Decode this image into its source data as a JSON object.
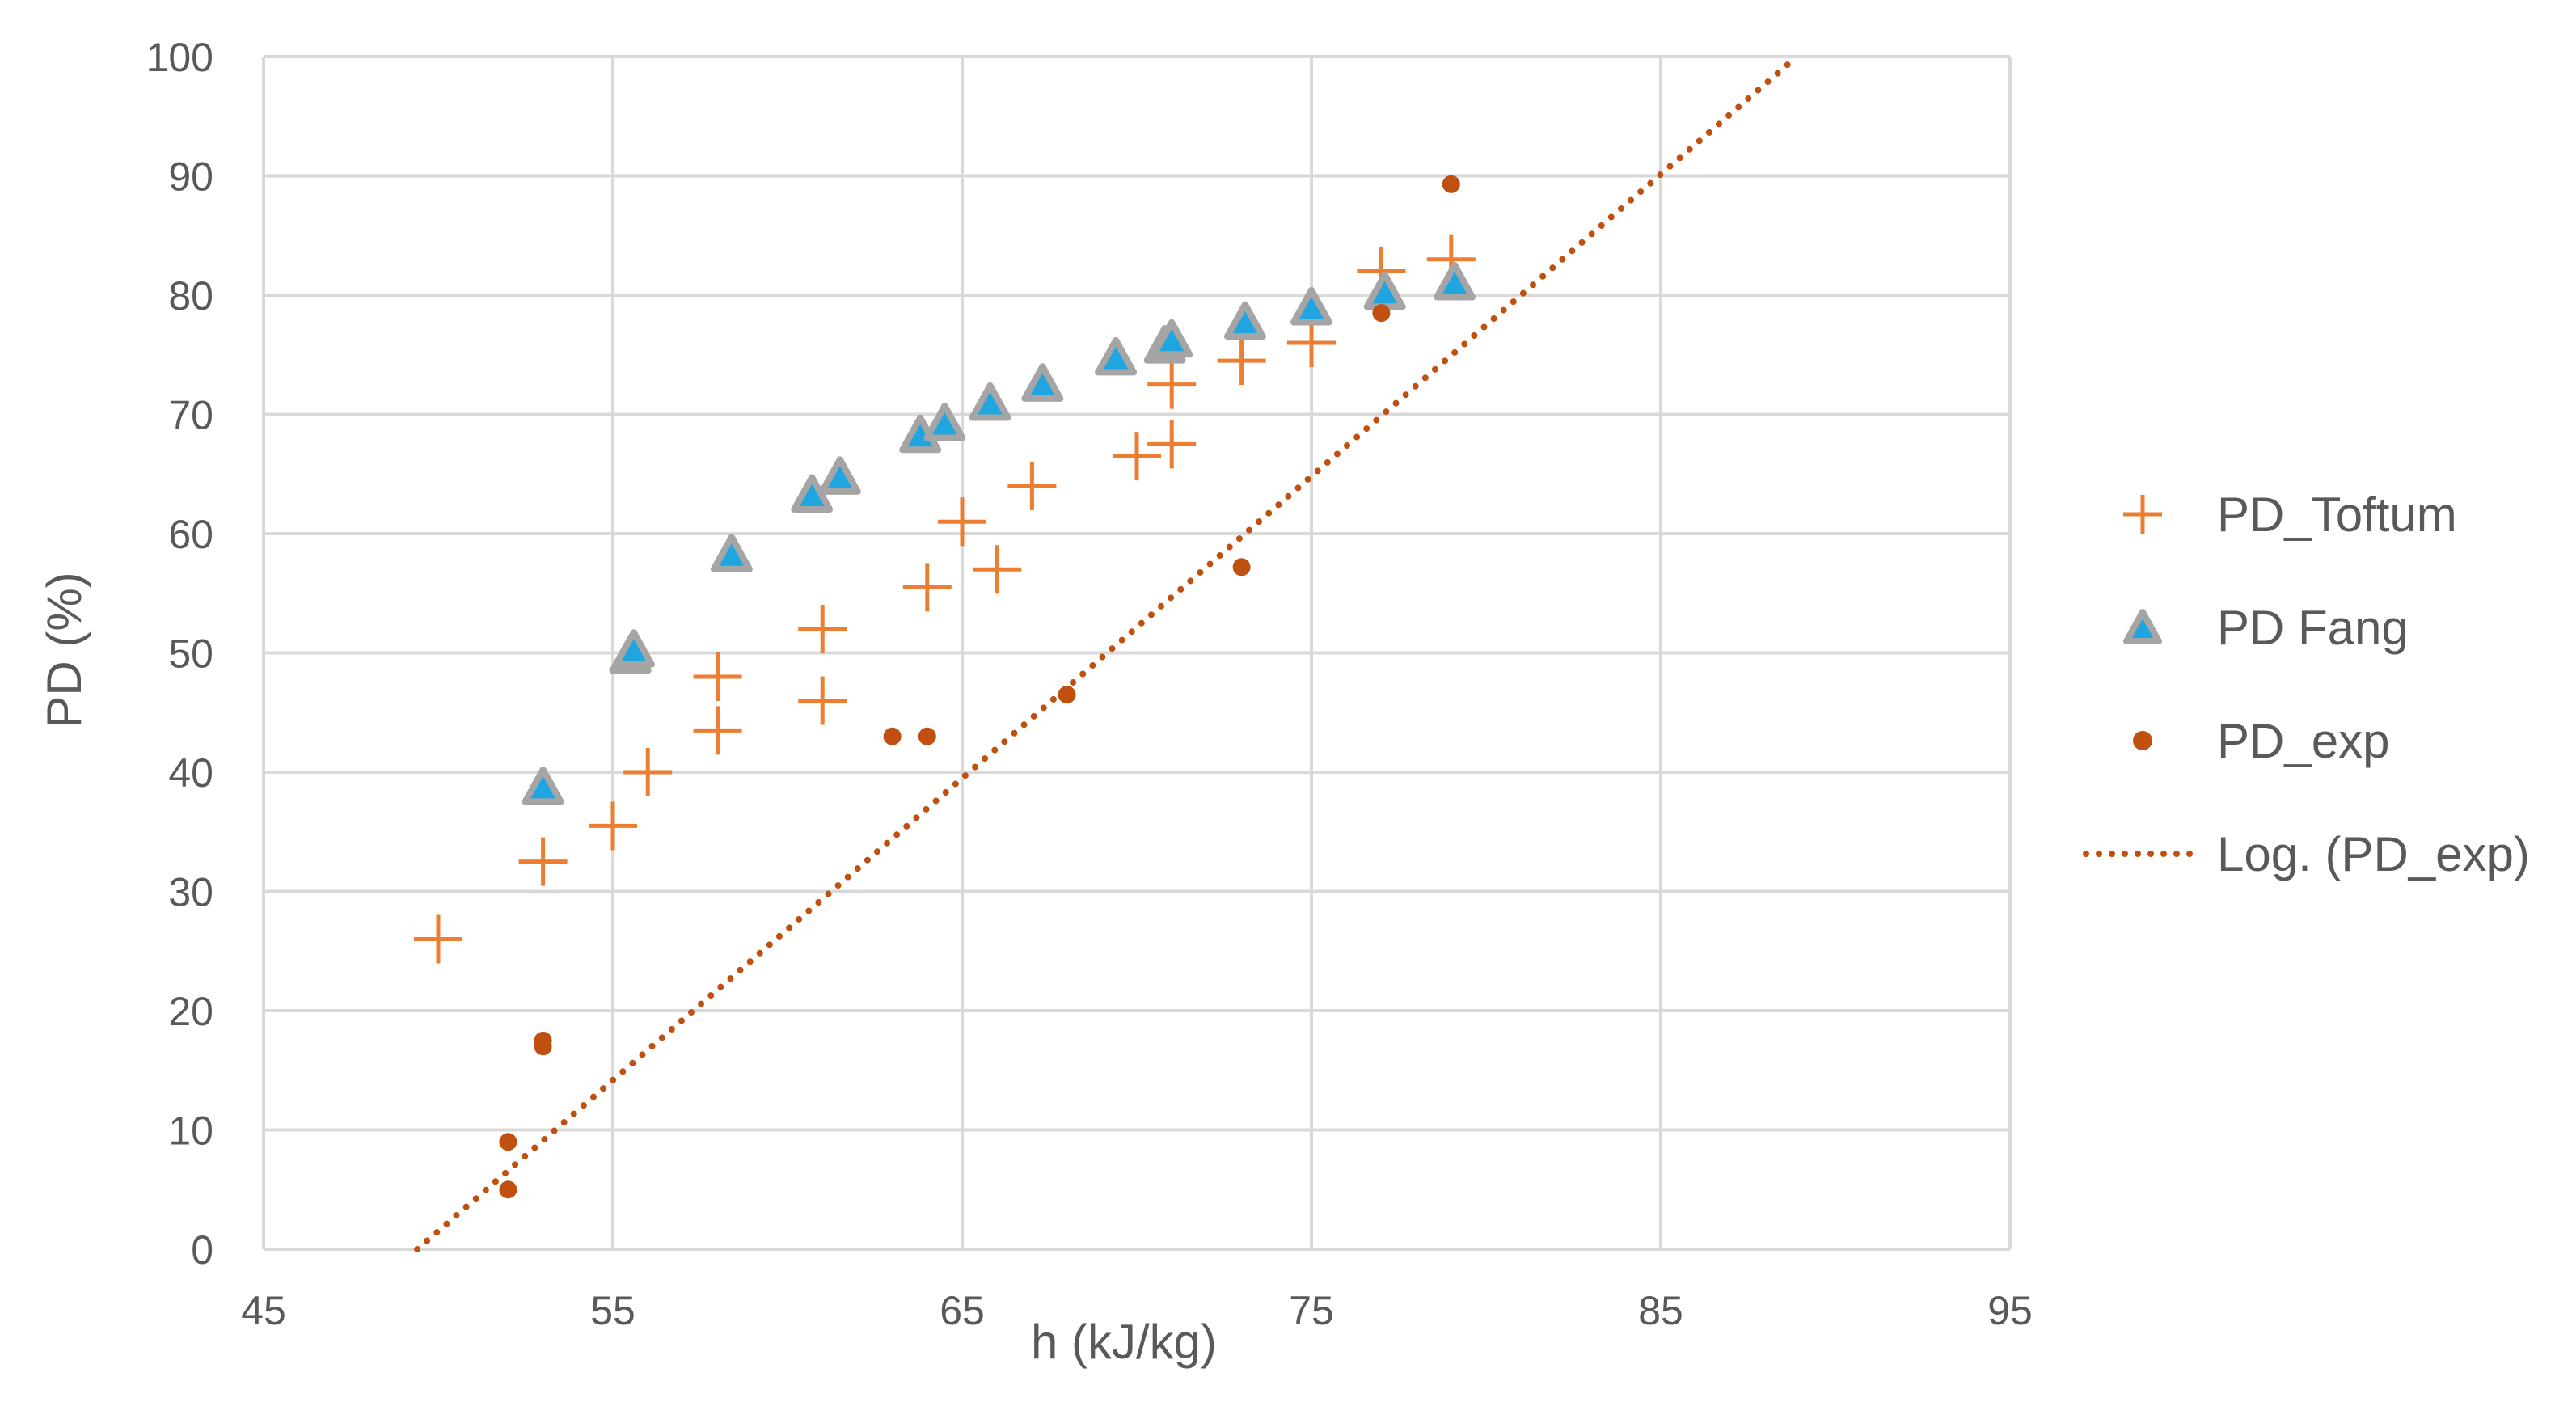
{
  "chart_data": {
    "type": "scatter",
    "title": "",
    "xlabel": "h (kJ/kg)",
    "ylabel": "PD (%)",
    "xlim": [
      45,
      95
    ],
    "ylim": [
      0,
      100
    ],
    "x_ticks": [
      "45",
      "55",
      "65",
      "75",
      "85",
      "95"
    ],
    "y_ticks": [
      "0",
      "10",
      "20",
      "30",
      "40",
      "50",
      "60",
      "70",
      "80",
      "90",
      "100"
    ],
    "grid": true,
    "legend_position": "right",
    "series": [
      {
        "name": "PD_Toftum",
        "marker": "plus",
        "color": "#ED7D31",
        "points": [
          [
            50,
            26
          ],
          [
            53,
            32.5
          ],
          [
            55,
            35.5
          ],
          [
            56,
            40
          ],
          [
            58,
            43.5
          ],
          [
            58,
            48
          ],
          [
            61,
            46
          ],
          [
            61,
            52
          ],
          [
            64,
            55.5
          ],
          [
            65,
            61
          ],
          [
            66,
            57
          ],
          [
            67,
            64
          ],
          [
            70,
            66.5
          ],
          [
            71,
            67.5
          ],
          [
            71,
            72.5
          ],
          [
            73,
            74.5
          ],
          [
            75,
            76
          ],
          [
            77,
            82
          ],
          [
            79,
            83
          ]
        ]
      },
      {
        "name": "PD Fang",
        "marker": "triangle",
        "color": "#1FA5E0",
        "edge_color": "#A5A5A5",
        "points": [
          [
            53,
            38.5
          ],
          [
            55.5,
            49.5
          ],
          [
            55.6,
            50
          ],
          [
            58.4,
            58
          ],
          [
            60.7,
            63
          ],
          [
            61.5,
            64.5
          ],
          [
            63.8,
            68
          ],
          [
            64.5,
            69
          ],
          [
            65.8,
            70.7
          ],
          [
            67.3,
            72.3
          ],
          [
            69.4,
            74.5
          ],
          [
            70.8,
            75.5
          ],
          [
            71,
            76
          ],
          [
            73.1,
            77.5
          ],
          [
            75,
            78.7
          ],
          [
            77.1,
            80
          ],
          [
            79.1,
            80.8
          ]
        ]
      },
      {
        "name": "PD_exp",
        "marker": "circle",
        "color": "#C0500F",
        "points": [
          [
            52,
            9
          ],
          [
            52,
            5
          ],
          [
            53,
            17.5
          ],
          [
            53,
            17
          ],
          [
            63,
            43
          ],
          [
            64,
            43
          ],
          [
            68,
            46.5
          ],
          [
            73,
            57.2
          ],
          [
            77,
            78.5
          ],
          [
            79,
            89.3
          ]
        ]
      },
      {
        "name": "Log. (PD_exp)",
        "marker": "dotted-line",
        "color": "#C0500F",
        "fit": "logarithmic",
        "fit_points": [
          [
            49.4,
            0
          ],
          [
            88.9,
            100
          ]
        ]
      }
    ]
  }
}
